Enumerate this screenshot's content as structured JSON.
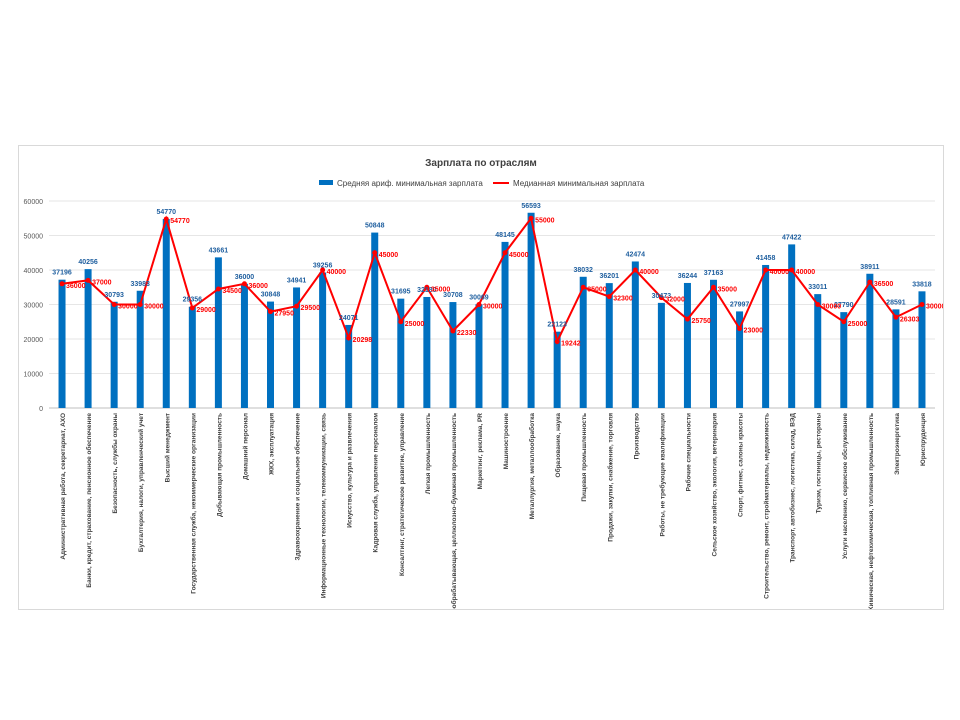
{
  "chart_data": {
    "type": "bar+line",
    "title": "Зарплата по отраслям",
    "legend_position": "top",
    "ylim": [
      0,
      60000
    ],
    "yticks": [
      0,
      10000,
      20000,
      30000,
      40000,
      50000,
      60000
    ],
    "grid": true,
    "categories": [
      "Административная работа, секретариат, АХО",
      "Банки, кредит, страхование, пенсионное обеспечение",
      "Безопасность, службы охраны",
      "Бухгалтерия, налоги, управленческий учет",
      "Высший менеджмент",
      "Государственная служба, некоммерческие организации",
      "Добывающая промышленность",
      "Домашний персонал",
      "ЖКХ, эксплуатация",
      "Здравоохранение и социальное обеспечение",
      "Информационные технологии, телекоммуникации, связь",
      "Искусство, культура и развлечения",
      "Кадровая служба, управление персоналом",
      "Консалтинг, стратегическое развитие, управление",
      "Легкая промышленность",
      "Лесная, деревообрабатывающая, целлюлозно-бумажная промышленность",
      "Маркетинг, реклама, PR",
      "Машиностроение",
      "Металлургия, металлообработка",
      "Образование, наука",
      "Пищевая промышленность",
      "Продажи, закупки, снабжение, торговля",
      "Производство",
      "Работы, не требующие квалификации",
      "Рабочие специальности",
      "Сельское хозяйство, экология, ветеринария",
      "Спорт, фитнес, салоны красоты",
      "Строительство, ремонт, стройматериалы, недвижимость",
      "Транспорт, автобизнес, логистика, склад, ВЭД",
      "Туризм, гостиницы, рестораны",
      "Услуги населению, сервисное обслуживание",
      "Химическая, нефтехимическая, топливная промышленность",
      "Электроэнергетика",
      "Юриспруденция"
    ],
    "series": [
      {
        "name": "Средняя ариф. минимальная зарплата",
        "type": "bar",
        "color": "#0070c0",
        "values": [
          37196,
          40256,
          30793,
          33983,
          54770,
          29356,
          43661,
          36000,
          30848,
          34941,
          39256,
          24071,
          50848,
          31695,
          32180,
          30708,
          30069,
          48145,
          56593,
          22123,
          38032,
          36201,
          42474,
          30473,
          36244,
          37163,
          27997,
          41458,
          47422,
          33011,
          27790,
          38911,
          28591,
          33818
        ]
      },
      {
        "name": "Медианная минимальная зарплата",
        "type": "line",
        "color": "#ff0000",
        "values": [
          36000,
          37000,
          30000,
          30000,
          54770,
          29000,
          34500,
          36000,
          27950,
          29500,
          40000,
          20298,
          45000,
          25000,
          35000,
          22330,
          30000,
          45000,
          55000,
          19242,
          35000,
          32300,
          40000,
          32000,
          25750,
          35000,
          23000,
          40000,
          40000,
          30000,
          25000,
          36500,
          26303,
          30000
        ]
      }
    ]
  }
}
